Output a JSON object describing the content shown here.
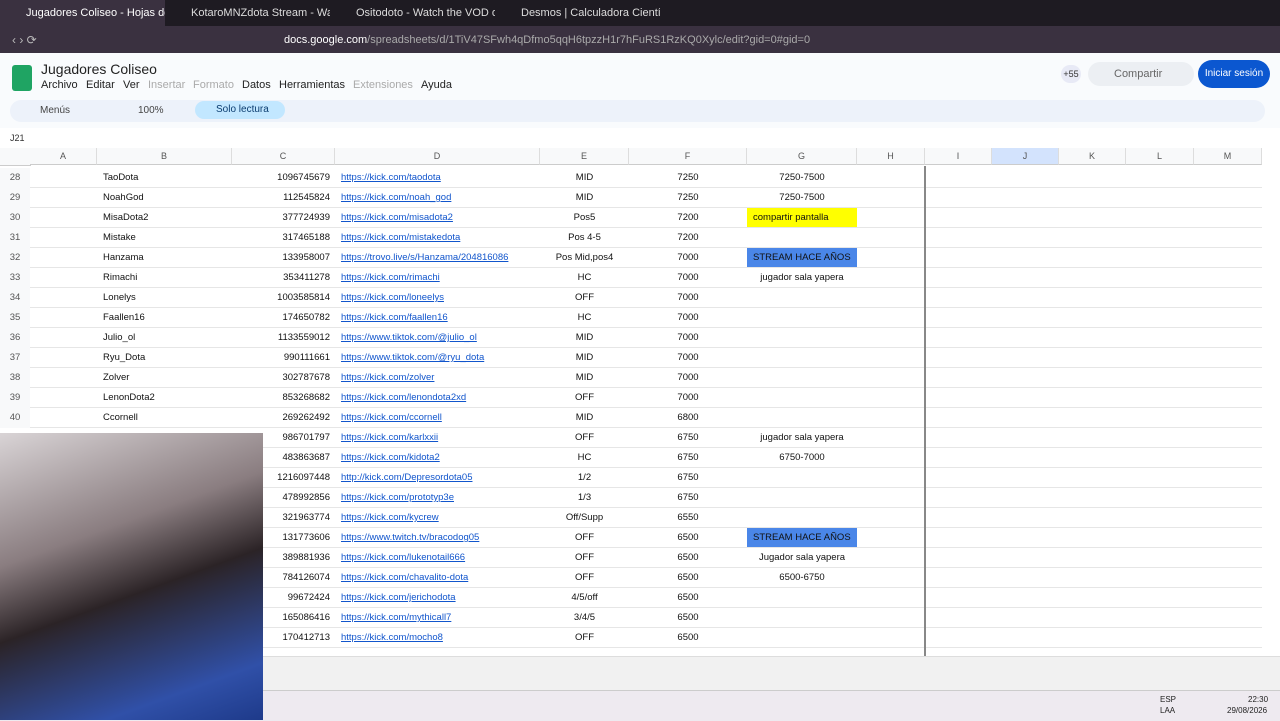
{
  "browser": {
    "tabs": [
      "Jugadores Coliseo - Hojas de cálc",
      "KotaroMNZdota Stream - Watch Live",
      "Ositodoto - Watch the VOD on Kick",
      "Desmos | Calculadora Científica"
    ],
    "url_host": "docs.google.com",
    "url_path": "/spreadsheets/d/1TiV47SFwh4qDfmo5qqH6tpzzH1r7hFuRS1RzKQ0Xylc/edit?gid=0#gid=0"
  },
  "header": {
    "title": "Jugadores Coliseo",
    "menus": [
      {
        "label": "Archivo",
        "enabled": true
      },
      {
        "label": "Editar",
        "enabled": true
      },
      {
        "label": "Ver",
        "enabled": true
      },
      {
        "label": "Insertar",
        "enabled": false
      },
      {
        "label": "Formato",
        "enabled": false
      },
      {
        "label": "Datos",
        "enabled": true
      },
      {
        "label": "Herramientas",
        "enabled": true
      },
      {
        "label": "Extensiones",
        "enabled": false
      },
      {
        "label": "Ayuda",
        "enabled": true
      }
    ],
    "more_users": "+55",
    "share": "Compartir",
    "sign_in": "Iniciar sesión"
  },
  "toolbar": {
    "menus": "Menús",
    "zoom": "100%",
    "mode": "Solo lectura"
  },
  "formula_bar": {
    "cell": "J21"
  },
  "sheet": {
    "columns": [
      "A",
      "B",
      "C",
      "D",
      "E",
      "F",
      "G",
      "H",
      "I",
      "J",
      "K",
      "L",
      "M"
    ],
    "selected_column": "J",
    "rows": [
      {
        "num": 28,
        "name": "TaoDota",
        "id": 1096745679,
        "url": "https://kick.com/taodota",
        "pos": "MID",
        "value": 7250,
        "note": "7250-7500"
      },
      {
        "num": 29,
        "name": "NoahGod",
        "id": 112545824,
        "url": "https://kick.com/noah_god",
        "pos": "MID",
        "value": 7250,
        "note": "7250-7500"
      },
      {
        "num": 30,
        "name": "MisaDota2",
        "id": 377724939,
        "url": "https://kick.com/misadota2",
        "pos": "Pos5",
        "value": 7200,
        "note": "compartir pantalla",
        "note_bg": "#ffff00"
      },
      {
        "num": 31,
        "name": "Mistake",
        "id": 317465188,
        "url": "https://kick.com/mistakedota",
        "pos": "Pos 4-5",
        "value": 7200
      },
      {
        "num": 32,
        "name": "Hanzama",
        "id": 133958007,
        "url": "https://trovo.live/s/Hanzama/204816086",
        "pos": "Pos Mid,pos4",
        "value": 7000,
        "note": "STREAM HACE AÑOS",
        "note_bg": "#4a86e8"
      },
      {
        "num": 33,
        "name": "Rimachi",
        "id": 353411278,
        "url": "https://kick.com/rimachi",
        "pos": "HC",
        "value": 7000,
        "note": "jugador sala yapera"
      },
      {
        "num": 34,
        "name": "Lonelys",
        "id": 1003585814,
        "url": "https://kick.com/loneelys",
        "pos": "OFF",
        "value": 7000
      },
      {
        "num": 35,
        "name": "Faallen16",
        "id": 174650782,
        "url": "https://kick.com/faallen16",
        "pos": "HC",
        "value": 7000
      },
      {
        "num": 36,
        "name": "Julio_ol",
        "id": 1133559012,
        "url": "https://www.tiktok.com/@julio_ol",
        "pos": "MID",
        "value": 7000
      },
      {
        "num": 37,
        "name": "Ryu_Dota",
        "id": 990111661,
        "url": "https://www.tiktok.com/@ryu_dota",
        "pos": "MID",
        "value": 7000
      },
      {
        "num": 38,
        "name": "Zolver",
        "id": 302787678,
        "url": "https://kick.com/zolver",
        "pos": "MID",
        "value": 7000
      },
      {
        "num": 39,
        "name": "LenonDota2",
        "id": 853268682,
        "url": "https://kick.com/lenondota2xd",
        "pos": "OFF",
        "value": 7000
      },
      {
        "num": 40,
        "name": "Ccornell",
        "id": 269262492,
        "url": "https://kick.com/ccornell",
        "pos": "MID",
        "value": 6800
      },
      {
        "id": 986701797,
        "url": "https://kick.com/karlxxii",
        "pos": "OFF",
        "value": 6750,
        "note": "jugador sala yapera"
      },
      {
        "id": 483863687,
        "url": "https://kick.com/kidota2",
        "pos": "HC",
        "value": 6750,
        "note": "6750-7000"
      },
      {
        "id": 1216097448,
        "url": "http://kick.com/Depresordota05",
        "pos": "1/2",
        "value": 6750
      },
      {
        "id": 478992856,
        "url": "https://kick.com/prototyp3e",
        "pos": "1/3",
        "value": 6750
      },
      {
        "id": 321963774,
        "url": "https://kick.com/kycrew",
        "pos": "Off/Supp",
        "value": 6550
      },
      {
        "id": 131773606,
        "url": "https://www.twitch.tv/bracodog05",
        "pos": "OFF",
        "value": 6500,
        "note": "STREAM HACE AÑOS",
        "note_bg": "#4a86e8"
      },
      {
        "id": 389881936,
        "url": "https://kick.com/lukenotail666",
        "pos": "OFF",
        "value": 6500,
        "note": "Jugador sala yapera"
      },
      {
        "id": 784126074,
        "url": "https://kick.com/chavalito-dota",
        "pos": "OFF",
        "value": 6500,
        "note": "6500-6750"
      },
      {
        "id": 99672424,
        "url": "https://kick.com/jerichodota",
        "pos": "4/5/off",
        "value": 6500
      },
      {
        "id": 165086416,
        "url": "https://kick.com/mythicall7",
        "pos": "3/4/5",
        "value": 6500
      },
      {
        "id": 170412713,
        "url": "https://kick.com/mocho8",
        "pos": "OFF",
        "value": 6500
      }
    ]
  },
  "taskbar": {
    "lang": "ESP",
    "layout": "LAA",
    "time": "22:30",
    "date": "29/08/2026"
  }
}
